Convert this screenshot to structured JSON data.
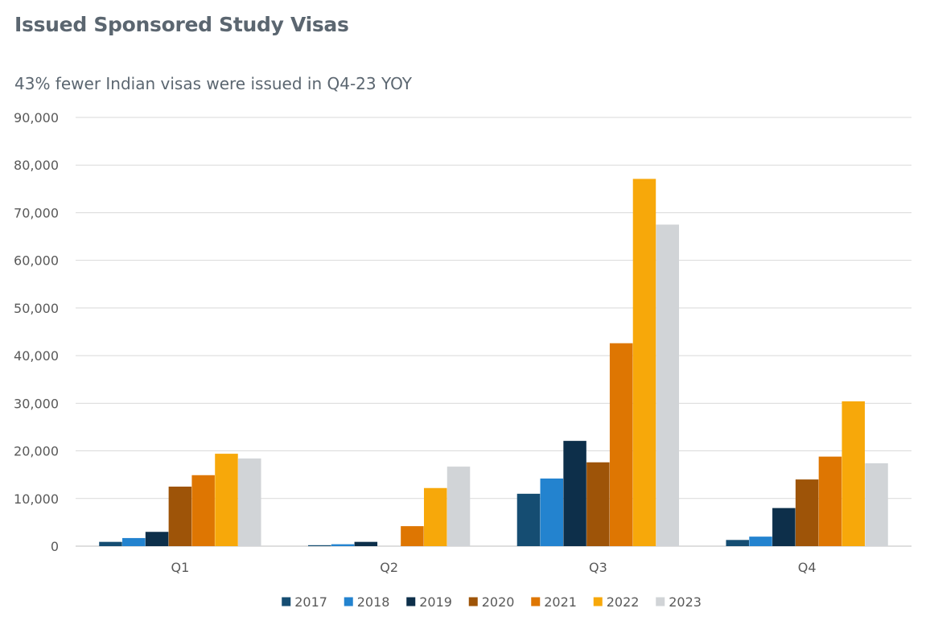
{
  "chart_data": {
    "type": "bar",
    "title": "Issued Sponsored Study Visas",
    "subtitle": "43% fewer Indian visas were issued in Q4-23 YOY",
    "categories": [
      "Q1",
      "Q2",
      "Q3",
      "Q4"
    ],
    "series": [
      {
        "name": "2017",
        "color": "#154d72",
        "values": [
          900,
          200,
          11000,
          1300
        ]
      },
      {
        "name": "2018",
        "color": "#2383cf",
        "values": [
          1700,
          400,
          14200,
          2000
        ]
      },
      {
        "name": "2019",
        "color": "#0d2f4a",
        "values": [
          3000,
          900,
          22100,
          8000
        ]
      },
      {
        "name": "2020",
        "color": "#9e5408",
        "values": [
          12500,
          0,
          17600,
          14000
        ]
      },
      {
        "name": "2021",
        "color": "#de7602",
        "values": [
          14900,
          4200,
          42600,
          18800
        ]
      },
      {
        "name": "2022",
        "color": "#f7a80a",
        "values": [
          19400,
          12200,
          77100,
          30400
        ]
      },
      {
        "name": "2023",
        "color": "#d1d4d7",
        "values": [
          18400,
          16700,
          67500,
          17400
        ]
      }
    ],
    "ylim": [
      0,
      90000
    ],
    "yticks": [
      0,
      10000,
      20000,
      30000,
      40000,
      50000,
      60000,
      70000,
      80000,
      90000
    ],
    "ytick_labels": [
      "0",
      "10,000",
      "20,000",
      "30,000",
      "40,000",
      "50,000",
      "60,000",
      "70,000",
      "80,000",
      "90,000"
    ],
    "grid": true,
    "legend_position": "bottom"
  }
}
